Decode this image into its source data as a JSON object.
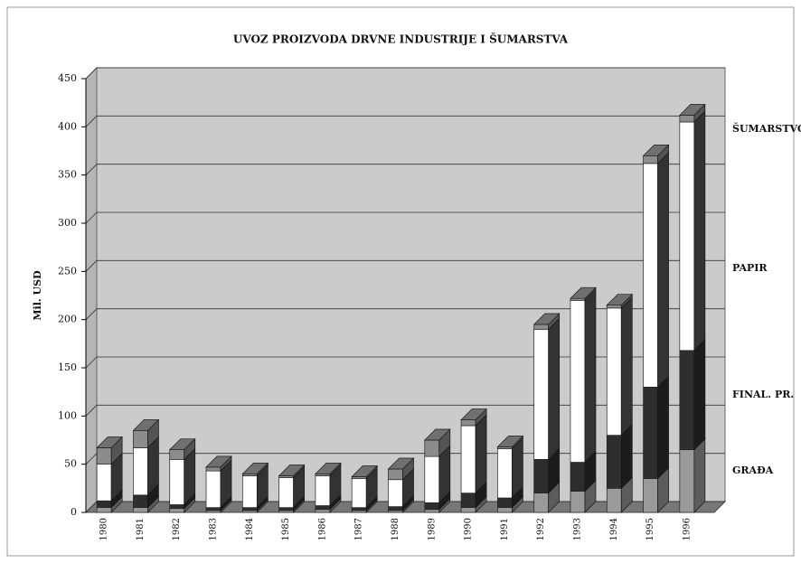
{
  "chart_data": {
    "type": "bar3d_stacked",
    "title": "UVOZ PROIZVODA DRVNE INDUSTRIJE I ŠUMARSTVA",
    "y_label": "Mil. USD",
    "categories": [
      "1980",
      "1981",
      "1982",
      "1983",
      "1984",
      "1985",
      "1986",
      "1987",
      "1988",
      "1989",
      "1990",
      "1991",
      "1992",
      "1993",
      "1994",
      "1995",
      "1996"
    ],
    "series": [
      {
        "name": "GRAĐA",
        "color": "#9a9a9a",
        "values": [
          5,
          5,
          4,
          2,
          2,
          2,
          3,
          2,
          2,
          3,
          5,
          5,
          20,
          22,
          25,
          35,
          65
        ]
      },
      {
        "name": "FINAL. PR.",
        "color": "#2e2e2e",
        "values": [
          7,
          13,
          4,
          3,
          3,
          3,
          4,
          3,
          4,
          7,
          15,
          10,
          35,
          30,
          55,
          95,
          103
        ]
      },
      {
        "name": "PAPIR",
        "color": "#ffffff",
        "values": [
          38,
          49,
          47,
          38,
          33,
          31,
          31,
          30,
          28,
          48,
          70,
          51,
          135,
          168,
          132,
          232,
          237
        ]
      },
      {
        "name": "ŠUMARSTVO",
        "color": "#8c8c8c",
        "values": [
          17,
          18,
          10,
          4,
          2,
          2,
          2,
          2,
          11,
          17,
          6,
          2,
          5,
          2,
          3,
          8,
          7
        ]
      }
    ],
    "ylim": [
      0,
      450
    ],
    "yticks": [
      0,
      50,
      100,
      150,
      200,
      250,
      300,
      350,
      400,
      450
    ],
    "grid": true
  }
}
